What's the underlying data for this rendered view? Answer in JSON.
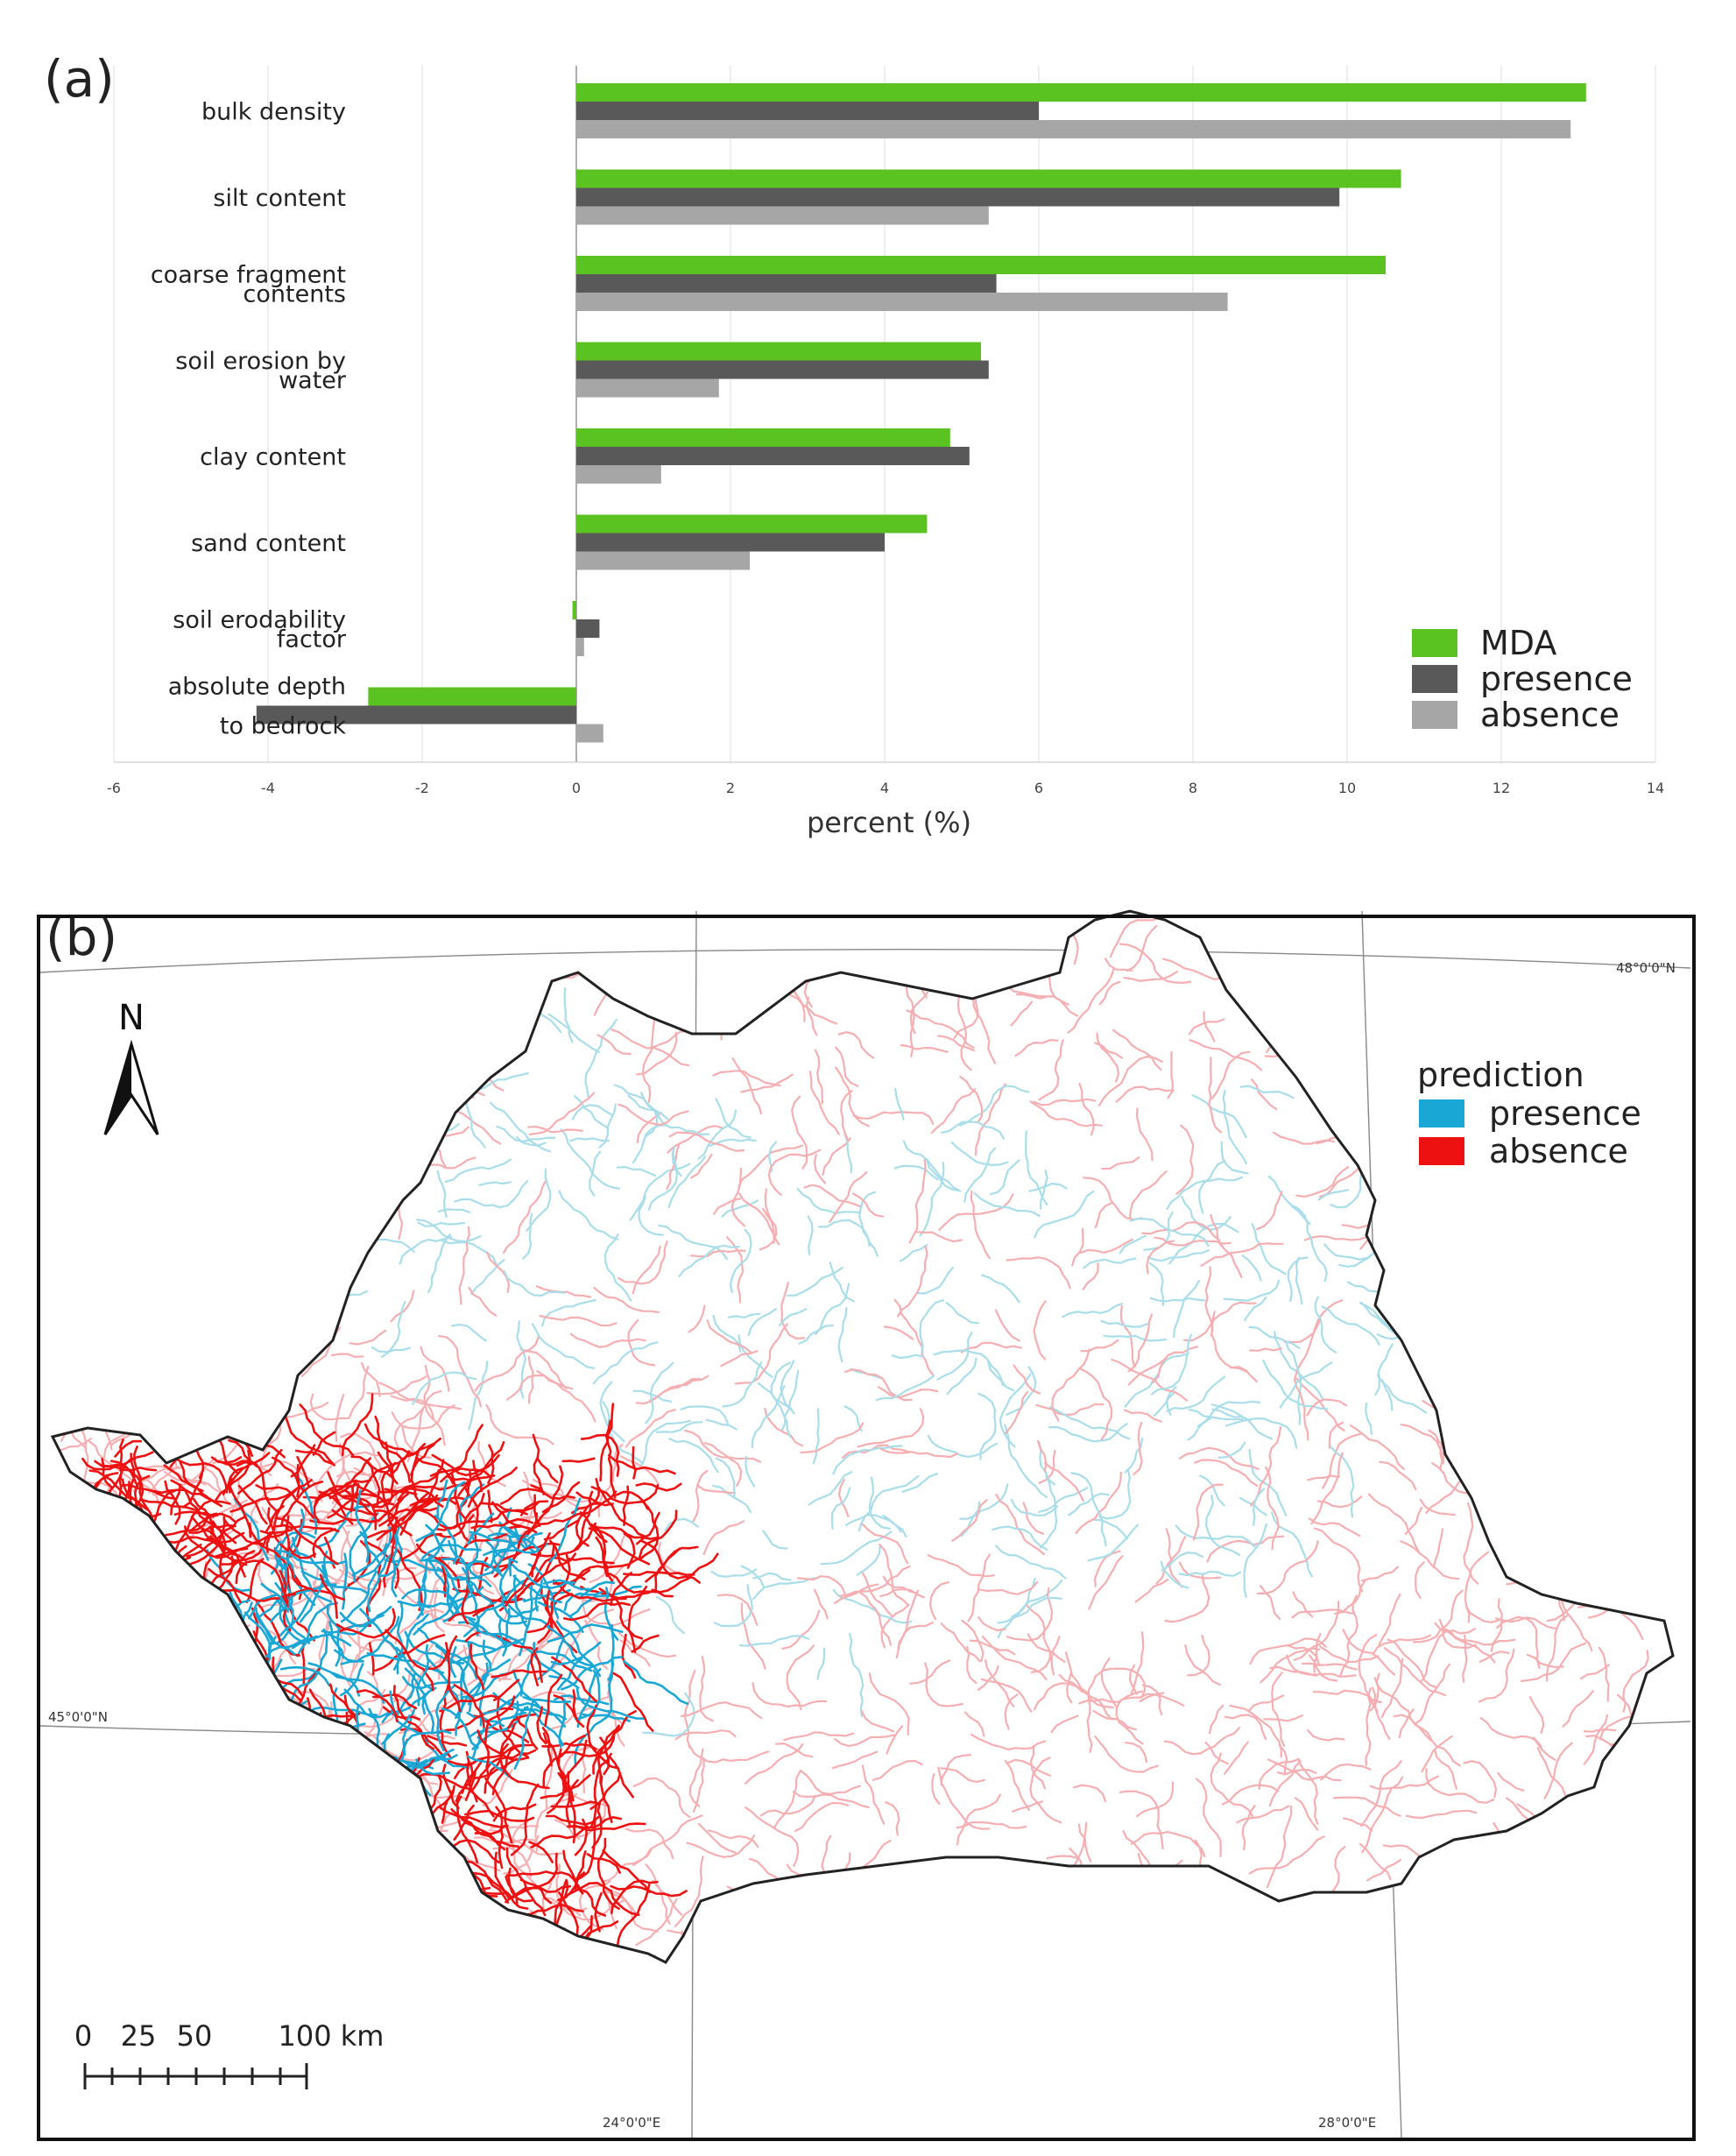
{
  "chart_data": {
    "type": "bar",
    "orientation": "horizontal",
    "panel_label": "(a)",
    "categories": [
      [
        "bulk density"
      ],
      [
        "silt content"
      ],
      [
        "coarse fragment",
        "contents"
      ],
      [
        "soil erosion by",
        "water"
      ],
      [
        "clay content"
      ],
      [
        "sand content"
      ],
      [
        "soil erodability",
        "factor"
      ],
      [
        "absolute depth",
        "to bedrock"
      ]
    ],
    "series": [
      {
        "name": "MDA",
        "color": "#5ac322",
        "values": [
          13.1,
          10.7,
          10.5,
          5.25,
          4.85,
          4.55,
          -0.05,
          -2.7
        ]
      },
      {
        "name": "presence",
        "color": "#595959",
        "values": [
          6.0,
          9.9,
          5.45,
          5.35,
          5.1,
          4.0,
          0.3,
          -4.15
        ]
      },
      {
        "name": "absence",
        "color": "#a6a6a6",
        "values": [
          12.9,
          5.35,
          8.45,
          1.85,
          1.1,
          2.25,
          0.1,
          0.35
        ]
      }
    ],
    "xlabel": "percent (%)",
    "ylabel": "",
    "xlim": [
      -6,
      14
    ],
    "xticks": [
      -6,
      -4,
      -2,
      0,
      2,
      4,
      6,
      8,
      10,
      12,
      14
    ],
    "grid": true,
    "legend_position": "bottom-right"
  },
  "map": {
    "panel_label": "(b)",
    "north_label": "N",
    "legend_title": "prediction",
    "legend": [
      {
        "label": "presence",
        "color": "#19a7d6"
      },
      {
        "label": "absence",
        "color": "#ee1111"
      }
    ],
    "background_presence_color": "#a9dde9",
    "background_absence_color": "#f5aeb1",
    "graticule": {
      "lat_top": "48°0'0\"N",
      "lat_mid": "45°0'0\"N",
      "lon_left": "24°0'0\"E",
      "lon_right": "28°0'0\"E"
    },
    "scale_bar": {
      "labels": [
        "0",
        "25",
        "50",
        "100 km"
      ]
    }
  }
}
